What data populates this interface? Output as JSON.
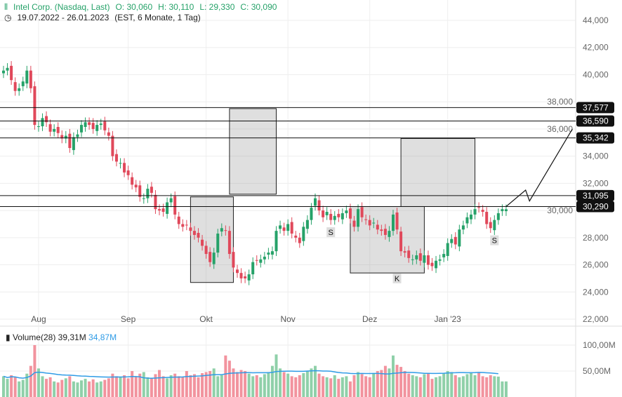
{
  "header": {
    "title": "Intel Corp. (Nasdaq, Last)",
    "open": "O: 30,060",
    "high": "H: 30,110",
    "low": "L: 29,330",
    "close": "C: 30,090",
    "range": "19.07.2022 - 26.01.2023",
    "details": "(EST, 6 Monate, 1 Tag)"
  },
  "volume_header": {
    "label": "Volume(28)",
    "value": "39,31M",
    "ma": "34,87M"
  },
  "chart_data": {
    "type": "candlestick",
    "title": "Intel Corp. (Nasdaq, Last)",
    "ylim": [
      22000,
      44000
    ],
    "yticks": [
      "44,000",
      "42,000",
      "40,000",
      "38,000",
      "36,000",
      "34,000",
      "32,000",
      "30,000",
      "28,000",
      "26,000",
      "24,000",
      "22,000"
    ],
    "xticks": [
      {
        "label": "Aug",
        "index": 9
      },
      {
        "label": "Sep",
        "index": 32
      },
      {
        "label": "Okt",
        "index": 52
      },
      {
        "label": "Nov",
        "index": 73
      },
      {
        "label": "Dez",
        "index": 94
      },
      {
        "label": "Jan '23",
        "index": 114
      }
    ],
    "close": [
      40.3,
      40.5,
      39.6,
      38.8,
      39.0,
      39.5,
      40.3,
      39.0,
      36.3,
      36.2,
      36.8,
      36.5,
      35.8,
      36.0,
      35.7,
      35.3,
      35.5,
      34.6,
      35.4,
      35.6,
      36.3,
      36.5,
      36.3,
      36.0,
      36.3,
      36.4,
      35.9,
      35.5,
      34.0,
      33.6,
      33.5,
      32.8,
      32.6,
      31.9,
      31.7,
      31.0,
      30.9,
      31.6,
      31.3,
      30.1,
      30.0,
      29.9,
      30.6,
      30.9,
      29.7,
      29.0,
      28.8,
      28.9,
      28.5,
      28.2,
      28.0,
      27.4,
      26.8,
      26.2,
      26.9,
      28.3,
      28.7,
      28.5,
      26.8,
      25.8,
      25.4,
      25.0,
      25.0,
      25.3,
      26.2,
      26.3,
      26.4,
      26.6,
      26.9,
      27.0,
      28.5,
      28.9,
      28.5,
      29.0,
      28.3,
      28.0,
      27.6,
      28.8,
      29.3,
      30.2,
      30.9,
      30.0,
      29.5,
      29.9,
      29.3,
      29.6,
      29.5,
      29.8,
      30.0,
      29.4,
      28.8,
      30.1,
      29.5,
      29.3,
      28.9,
      29.1,
      28.6,
      28.5,
      28.2,
      28.5,
      29.7,
      28.6,
      27.0,
      26.9,
      26.5,
      26.4,
      26.7,
      26.3,
      26.7,
      26.0,
      25.9,
      26.3,
      26.4,
      26.8,
      27.6,
      27.9,
      27.5,
      28.6,
      28.9,
      29.5,
      29.7,
      30.1,
      30.2,
      29.9,
      29.0,
      28.7,
      29.3,
      29.8,
      30.1,
      30.09
    ],
    "volume_m": [
      40,
      35,
      42,
      38,
      30,
      33,
      45,
      60,
      100,
      55,
      40,
      35,
      38,
      30,
      28,
      33,
      36,
      40,
      30,
      28,
      32,
      35,
      30,
      34,
      28,
      30,
      33,
      36,
      45,
      40,
      38,
      42,
      36,
      50,
      40,
      45,
      48,
      38,
      36,
      44,
      52,
      40,
      36,
      42,
      45,
      40,
      38,
      50,
      42,
      44,
      38,
      46,
      48,
      50,
      55,
      40,
      42,
      80,
      70,
      55,
      48,
      52,
      50,
      45,
      40,
      42,
      38,
      44,
      48,
      60,
      82,
      55,
      48,
      45,
      40,
      38,
      42,
      46,
      50,
      55,
      60,
      45,
      40,
      38,
      36,
      42,
      35,
      38,
      40,
      30,
      42,
      48,
      44,
      40,
      38,
      46,
      50,
      52,
      60,
      55,
      80,
      62,
      58,
      50,
      45,
      42,
      40,
      38,
      44,
      46,
      35,
      38,
      40,
      45,
      50,
      48,
      42,
      38,
      40,
      44,
      46,
      42,
      48,
      40,
      38,
      42,
      40,
      39.31
    ],
    "volume_ma_m": 34.87,
    "volume_ticks": [
      "100,00M",
      "50,00M"
    ],
    "horizontal_levels": [
      {
        "value": 37577,
        "label": "37,577"
      },
      {
        "value": 36590,
        "label": "36,590"
      },
      {
        "value": 35342,
        "label": "35,342"
      },
      {
        "value": 31095,
        "label": "31,095"
      },
      {
        "value": 30290,
        "label": "30,290"
      }
    ],
    "boxes": [
      {
        "from": 48,
        "to": 59,
        "low": 24700,
        "high": 31000
      },
      {
        "from": 58,
        "to": 70,
        "low": 31200,
        "high": 37500
      },
      {
        "from": 89,
        "to": 108,
        "low": 25400,
        "high": 30290
      },
      {
        "from": 102,
        "to": 121,
        "low": 30290,
        "high": 35300
      }
    ],
    "annotations": [
      {
        "text": "S",
        "index": 84,
        "value": 28300
      },
      {
        "text": "K",
        "index": 101,
        "value": 24900
      },
      {
        "text": "S",
        "index": 126,
        "value": 27700
      }
    ],
    "projection": [
      [
        129,
        30290
      ],
      [
        134,
        31500
      ],
      [
        135,
        30700
      ],
      [
        146,
        36000
      ]
    ]
  }
}
